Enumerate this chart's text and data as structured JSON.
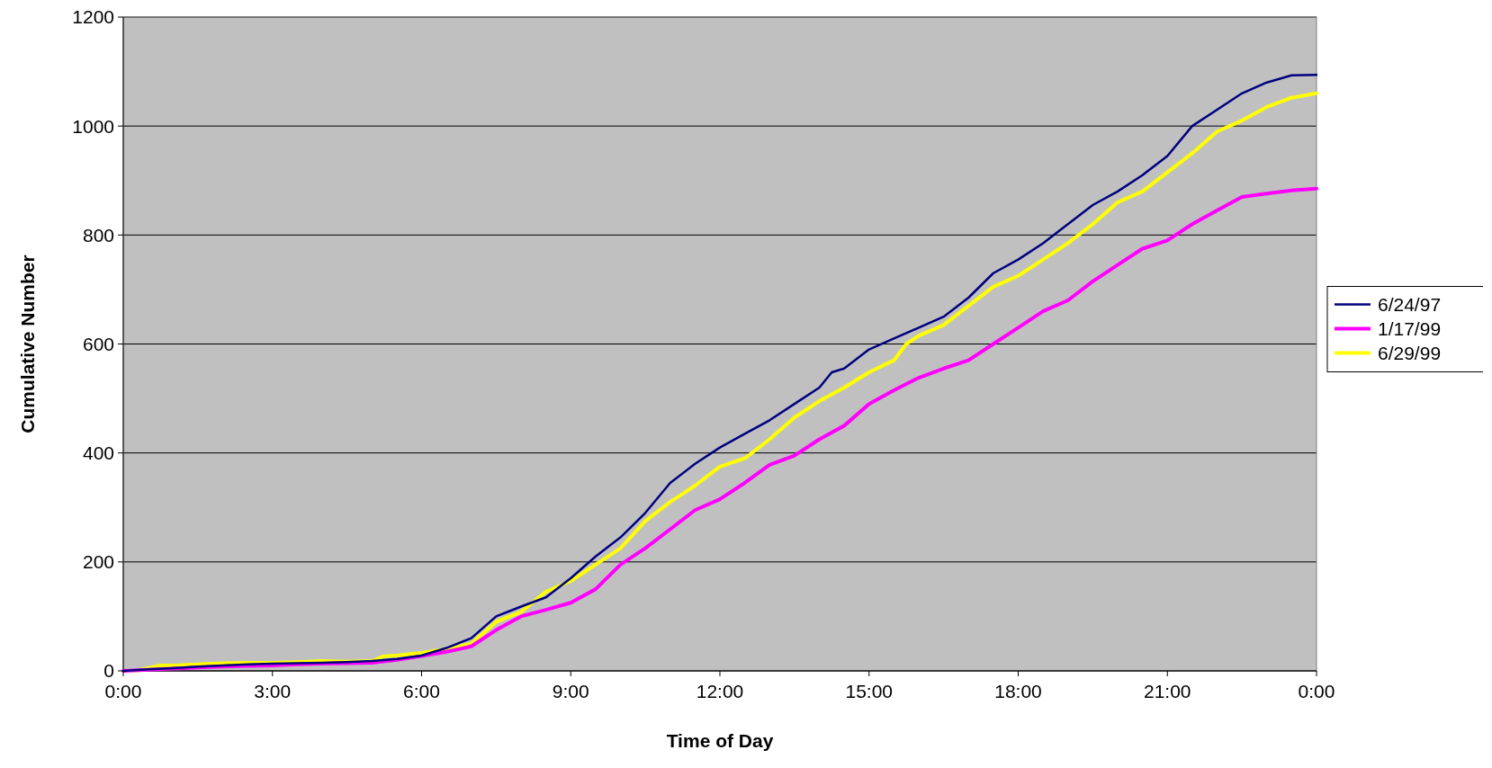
{
  "chart_data": {
    "type": "line",
    "xlabel": "Time of Day",
    "ylabel": "Cumulative Number",
    "xlim": [
      0,
      24
    ],
    "xticks": [
      {
        "value": 0,
        "label": "0:00"
      },
      {
        "value": 3,
        "label": "3:00"
      },
      {
        "value": 6,
        "label": "6:00"
      },
      {
        "value": 9,
        "label": "9:00"
      },
      {
        "value": 12,
        "label": "12:00"
      },
      {
        "value": 15,
        "label": "15:00"
      },
      {
        "value": 18,
        "label": "18:00"
      },
      {
        "value": 21,
        "label": "21:00"
      },
      {
        "value": 24,
        "label": "0:00"
      }
    ],
    "ylim": [
      0,
      1200
    ],
    "yticks": [
      0,
      200,
      400,
      600,
      800,
      1000,
      1200
    ],
    "grid": "y",
    "legend": "right",
    "marker": "none",
    "line_style": "solid",
    "series": [
      {
        "name": "6/24/97",
        "color": "#000080",
        "x": [
          0,
          0.5,
          1,
          1.5,
          2,
          2.5,
          3,
          3.5,
          4,
          4.5,
          5,
          5.5,
          6,
          6.5,
          7,
          7.5,
          8,
          8.5,
          9,
          9.5,
          10,
          10.5,
          11,
          11.5,
          12,
          12.5,
          13,
          13.5,
          14,
          14.25,
          14.5,
          15,
          15.5,
          16,
          16.5,
          17,
          17.5,
          18,
          18.5,
          19,
          19.5,
          20,
          20.5,
          21,
          21.5,
          22,
          22.5,
          23,
          23.5,
          24
        ],
        "values": [
          0,
          3,
          5,
          8,
          10,
          12,
          13,
          14,
          15,
          16,
          18,
          22,
          28,
          42,
          60,
          100,
          118,
          135,
          170,
          210,
          245,
          290,
          345,
          380,
          410,
          435,
          460,
          490,
          520,
          548,
          555,
          590,
          610,
          630,
          650,
          685,
          730,
          755,
          785,
          820,
          855,
          880,
          910,
          945,
          1000,
          1030,
          1060,
          1080,
          1093,
          1094
        ]
      },
      {
        "name": "1/17/99",
        "color": "#ff00ff",
        "x": [
          0,
          0.5,
          1,
          1.5,
          2,
          2.5,
          3,
          3.5,
          4,
          4.5,
          5,
          5.5,
          6,
          6.5,
          7,
          7.5,
          8,
          8.5,
          9,
          9.5,
          10,
          10.5,
          11,
          11.5,
          12,
          12.5,
          13,
          13.5,
          14,
          14.5,
          15,
          15.5,
          16,
          16.5,
          17,
          17.5,
          18,
          18.5,
          19,
          19.5,
          20,
          20.5,
          21,
          21.5,
          22,
          22.5,
          23,
          23.5,
          24
        ],
        "values": [
          0,
          2,
          4,
          6,
          8,
          9,
          10,
          12,
          13,
          14,
          15,
          20,
          27,
          35,
          45,
          75,
          100,
          112,
          125,
          150,
          195,
          225,
          260,
          295,
          315,
          345,
          378,
          395,
          425,
          450,
          490,
          515,
          538,
          555,
          570,
          600,
          630,
          660,
          680,
          715,
          745,
          775,
          790,
          820,
          845,
          870,
          876,
          882,
          885
        ]
      },
      {
        "name": "6/29/99",
        "color": "#ffff00",
        "x": [
          0.25,
          0.5,
          0.75,
          1,
          1.5,
          2,
          2.5,
          3,
          3.5,
          4,
          4.5,
          5,
          5.25,
          5.5,
          6,
          6.5,
          7,
          7.5,
          8,
          8.5,
          9,
          9.5,
          10,
          10.5,
          11,
          11.5,
          12,
          12.5,
          13,
          13.5,
          14,
          14.5,
          15,
          15.5,
          15.75,
          16,
          16.5,
          17,
          17.5,
          18,
          18.5,
          19,
          19.5,
          20,
          20.5,
          21,
          21.5,
          22,
          22.5,
          23,
          23.5,
          24
        ],
        "values": [
          0,
          5,
          10,
          10,
          12,
          14,
          15,
          15,
          16,
          18,
          17,
          18,
          27,
          28,
          33,
          40,
          50,
          90,
          108,
          145,
          165,
          195,
          225,
          275,
          310,
          340,
          375,
          390,
          425,
          465,
          495,
          520,
          548,
          570,
          600,
          615,
          635,
          670,
          705,
          725,
          755,
          785,
          820,
          860,
          880,
          915,
          950,
          990,
          1010,
          1035,
          1052,
          1060
        ]
      }
    ]
  }
}
